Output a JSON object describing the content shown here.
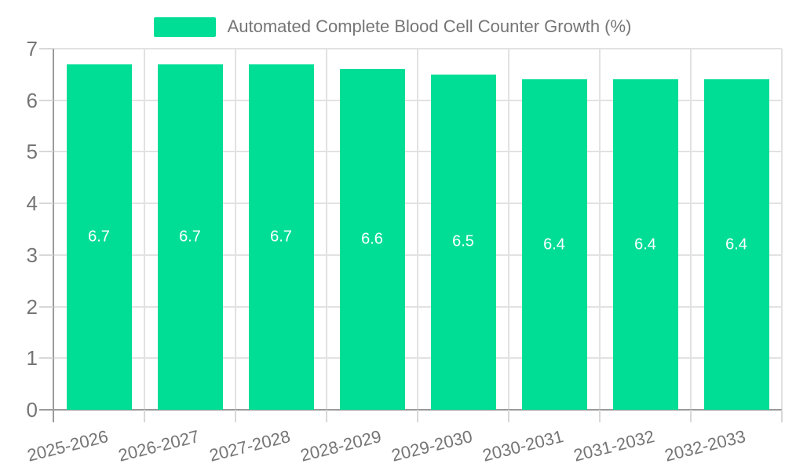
{
  "chart_data": {
    "type": "bar",
    "title": "Automated Complete Blood Cell Counter Growth (%)",
    "categories": [
      "2025-2026",
      "2026-2027",
      "2027-2028",
      "2028-2029",
      "2029-2030",
      "2030-2031",
      "2031-2032",
      "2032-2033"
    ],
    "values": [
      6.7,
      6.7,
      6.7,
      6.6,
      6.5,
      6.4,
      6.4,
      6.4
    ],
    "value_labels": [
      "6.7",
      "6.7",
      "6.7",
      "6.6",
      "6.5",
      "6.4",
      "6.4",
      "6.4"
    ],
    "xlabel": "",
    "ylabel": "",
    "ylim": [
      0,
      7
    ],
    "y_tick_values": [
      0,
      1,
      2,
      3,
      4,
      5,
      6,
      7
    ],
    "y_tick_labels": [
      "0",
      "1",
      "2",
      "3",
      "4",
      "5",
      "6",
      "7"
    ],
    "grid": true,
    "legend_position": "top-center",
    "colors": {
      "bar": "#00DE95",
      "grid_line": "#E2E2E2",
      "axis_line": "#9A9A9A",
      "tick": "#D8D8D8",
      "axis_text": "#757575",
      "legend_text": "#757575",
      "value_label_text": "#FFFFFF",
      "background": "#FFFFFF"
    }
  }
}
